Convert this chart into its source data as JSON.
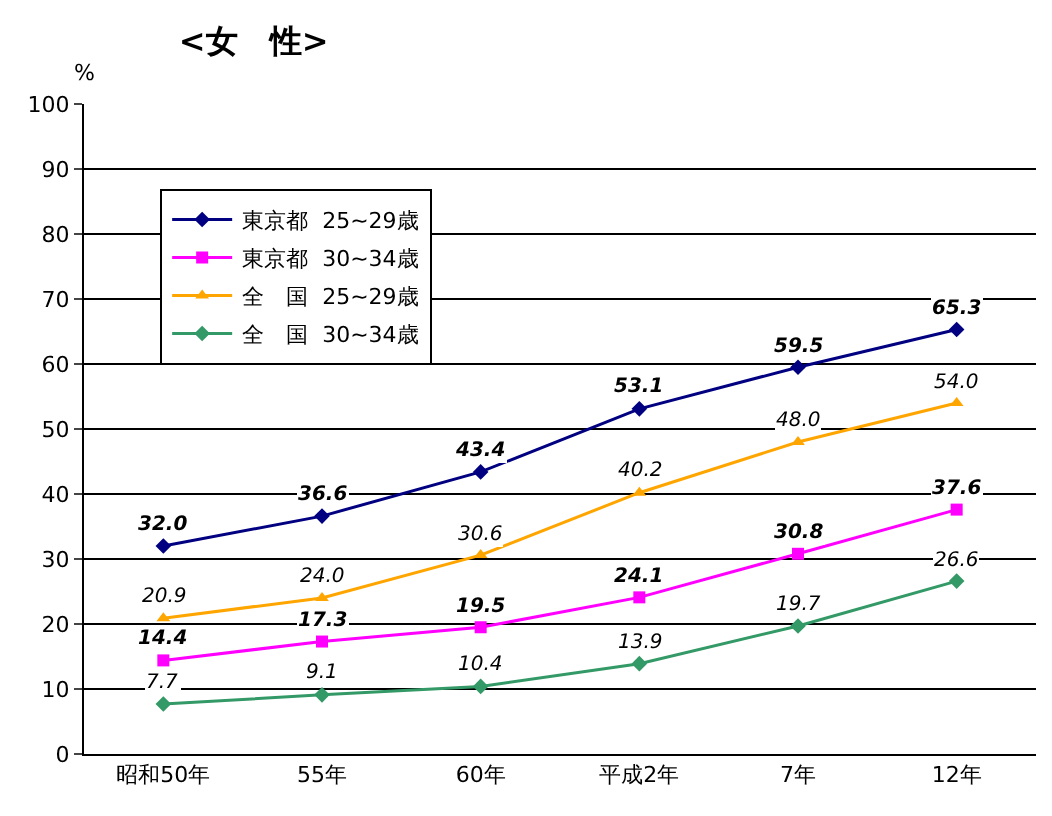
{
  "chart_data": {
    "type": "line",
    "title": "<女　性>",
    "ylabel": "%",
    "categories": [
      "昭和50年",
      "55年",
      "60年",
      "平成2年",
      "7年",
      "12年"
    ],
    "series": [
      {
        "name": "東京都  25~29歳",
        "color": "#000080",
        "marker": "diamond",
        "values": [
          32.0,
          36.6,
          43.4,
          53.1,
          59.5,
          65.3
        ],
        "value_labels": [
          "32.0",
          "36.6",
          "43.4",
          "53.1",
          "59.5",
          "65.3"
        ]
      },
      {
        "name": "東京都  30~34歳",
        "color": "#ff00ff",
        "marker": "square",
        "values": [
          14.4,
          17.3,
          19.5,
          24.1,
          30.8,
          37.6
        ],
        "value_labels": [
          "14.4",
          "17.3",
          "19.5",
          "24.1",
          "30.8",
          "37.6"
        ]
      },
      {
        "name": "全　国  25~29歳",
        "color": "#ffa500",
        "marker": "triangle",
        "values": [
          20.9,
          24.0,
          30.6,
          40.2,
          48.0,
          54.0
        ],
        "value_labels": [
          "20.9",
          "24.0",
          "30.6",
          "40.2",
          "48.0",
          "54.0"
        ]
      },
      {
        "name": "全　国  30~34歳",
        "color": "#339966",
        "marker": "diamond",
        "values": [
          7.7,
          9.1,
          10.4,
          13.9,
          19.7,
          26.6
        ],
        "value_labels": [
          "7.7",
          "9.1",
          "10.4",
          "13.9",
          "19.7",
          "26.6"
        ]
      }
    ],
    "ylim": [
      0,
      100
    ],
    "yticks": [
      0,
      10,
      20,
      30,
      40,
      50,
      60,
      70,
      80,
      90,
      100
    ],
    "grid": "y",
    "legend": "top left",
    "line_style": "solid"
  }
}
